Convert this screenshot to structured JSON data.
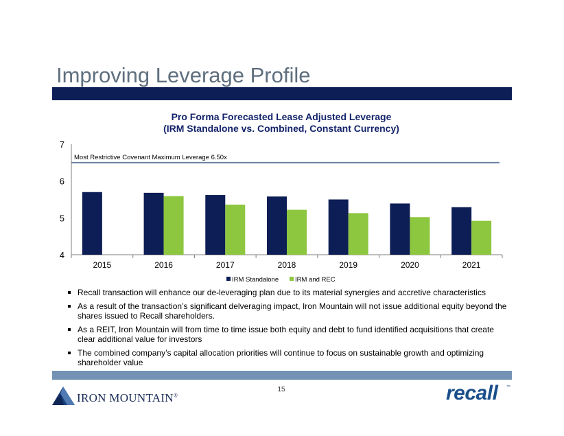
{
  "slide": {
    "title": "Improving Leverage Profile",
    "page_number": "15"
  },
  "bullets": [
    "Recall transaction will enhance  our de-leveraging plan due to its material synergies and accretive characteristics",
    "As a result of the transaction’s significant delveraging impact, Iron Mountain will not issue additional equity beyond the shares issued to Recall shareholders.",
    "As a REIT, Iron Mountain will from time to time issue both equity and debt to fund identified acquisitions that create clear additional value for investors",
    "The combined company’s capital allocation priorities will continue to focus on sustainable growth and optimizing shareholder value"
  ],
  "logos": {
    "iron_mountain": "IRON MOUNTAIN",
    "iron_mountain_mark": "®",
    "recall": "recall",
    "recall_mark": "™"
  },
  "colors": {
    "irm_standalone": "#0d1d55",
    "irm_and_rec": "#8dc63f",
    "covenant_line": "#6a7f9e",
    "title_bar": "#0d1d55",
    "footer_bar": "#7392b4"
  },
  "chart_data": {
    "type": "bar",
    "title": "Pro Forma Forecasted Lease Adjusted Leverage",
    "subtitle": "(IRM Standalone vs. Combined, Constant Currency)",
    "categories": [
      "2015",
      "2016",
      "2017",
      "2018",
      "2019",
      "2020",
      "2021"
    ],
    "series": [
      {
        "name": "IRM Standalone",
        "values": [
          5.7,
          5.68,
          5.62,
          5.58,
          5.5,
          5.39,
          5.29
        ]
      },
      {
        "name": "IRM and REC",
        "values": [
          null,
          5.59,
          5.36,
          5.22,
          5.13,
          5.02,
          4.92
        ]
      }
    ],
    "ylim": [
      4,
      7
    ],
    "yticks": [
      4,
      5,
      6,
      7
    ],
    "reference_line": {
      "value": 6.5,
      "label": "Most Restrictive Covenant  Maximum Leverage 6.50x"
    },
    "legend": "bottom-center",
    "xlabel": "",
    "ylabel": ""
  }
}
